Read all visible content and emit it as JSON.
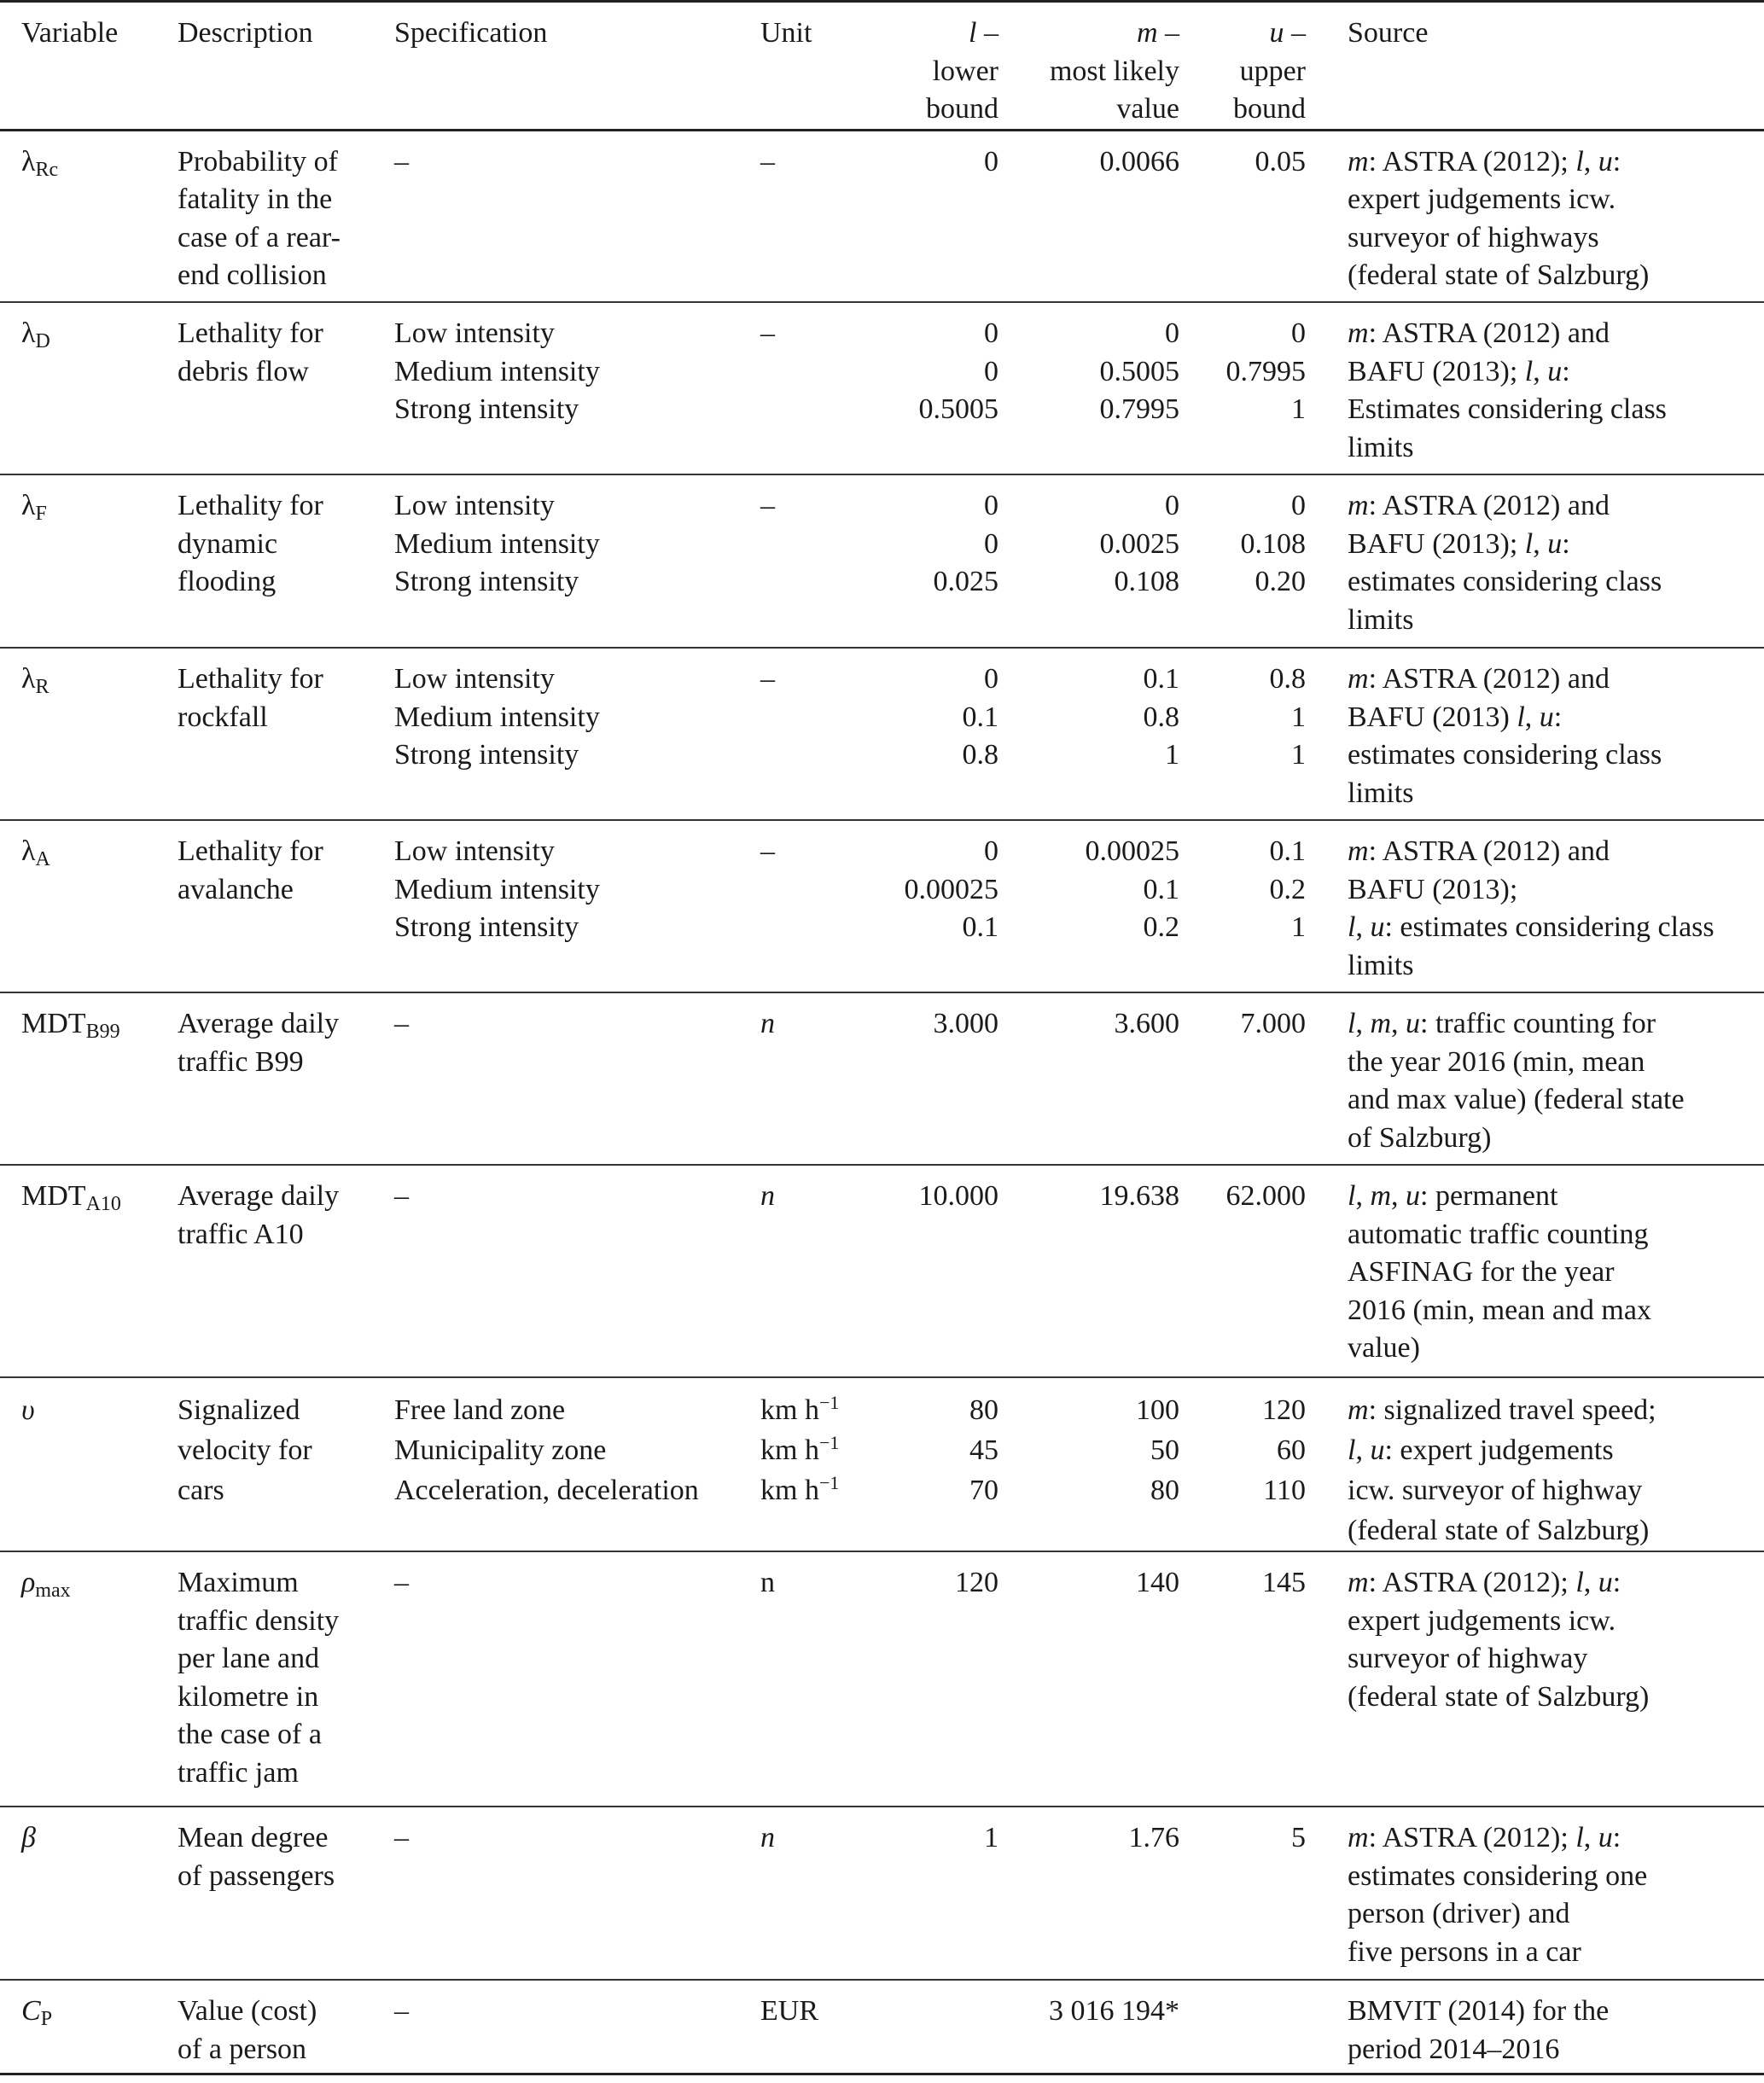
{
  "header": [
    [
      [
        "Variable"
      ]
    ],
    [
      [
        "Description"
      ]
    ],
    [
      [
        "Specification"
      ]
    ],
    [
      [
        "Unit"
      ]
    ],
    [
      [
        {
          "i": "l"
        },
        " –"
      ],
      [
        "lower"
      ],
      [
        "bound"
      ]
    ],
    [
      [
        {
          "i": "m"
        },
        " –"
      ],
      [
        "most likely"
      ],
      [
        "value"
      ]
    ],
    [
      [
        {
          "i": "u"
        },
        " –"
      ],
      [
        "upper"
      ],
      [
        "bound"
      ]
    ],
    [
      [
        "Source"
      ]
    ]
  ],
  "rows": [
    {
      "cells": [
        [
          [
            "λ",
            {
              "sub": "Rc"
            }
          ]
        ],
        [
          [
            "Probability of"
          ],
          [
            "fatality in the"
          ],
          [
            "case of a rear-"
          ],
          [
            "end collision"
          ]
        ],
        [
          [
            "–"
          ]
        ],
        [
          [
            "–"
          ]
        ],
        [
          [
            "0"
          ]
        ],
        [
          [
            "0.0066"
          ]
        ],
        [
          [
            "0.05"
          ]
        ],
        [
          [
            {
              "i": "m"
            },
            ": ASTRA (2012); ",
            {
              "i": "l"
            },
            ", ",
            {
              "i": "u"
            },
            ":"
          ],
          [
            "expert judgements icw."
          ],
          [
            "surveyor of highways"
          ],
          [
            "(federal state of Salzburg)"
          ]
        ]
      ]
    },
    {
      "cells": [
        [
          [
            "λ",
            {
              "sub": "D"
            }
          ]
        ],
        [
          [
            "Lethality for"
          ],
          [
            "debris flow"
          ]
        ],
        [
          [
            "Low intensity"
          ],
          [
            "Medium intensity"
          ],
          [
            "Strong intensity"
          ]
        ],
        [
          [
            "–"
          ]
        ],
        [
          [
            "0"
          ],
          [
            "0"
          ],
          [
            "0.5005"
          ]
        ],
        [
          [
            "0"
          ],
          [
            "0.5005"
          ],
          [
            "0.7995"
          ]
        ],
        [
          [
            "0"
          ],
          [
            "0.7995"
          ],
          [
            "1"
          ]
        ],
        [
          [
            {
              "i": "m"
            },
            ": ASTRA (2012) and"
          ],
          [
            "BAFU (2013); ",
            {
              "i": "l"
            },
            ", ",
            {
              "i": "u"
            },
            ":"
          ],
          [
            "Estimates considering class"
          ],
          [
            "limits"
          ]
        ]
      ]
    },
    {
      "cells": [
        [
          [
            "λ",
            {
              "sub": "F"
            }
          ]
        ],
        [
          [
            "Lethality for"
          ],
          [
            "dynamic"
          ],
          [
            "flooding"
          ]
        ],
        [
          [
            "Low intensity"
          ],
          [
            "Medium intensity"
          ],
          [
            "Strong intensity"
          ]
        ],
        [
          [
            "–"
          ]
        ],
        [
          [
            "0"
          ],
          [
            "0"
          ],
          [
            "0.025"
          ]
        ],
        [
          [
            "0"
          ],
          [
            "0.0025"
          ],
          [
            "0.108"
          ]
        ],
        [
          [
            "0"
          ],
          [
            "0.108"
          ],
          [
            "0.20"
          ]
        ],
        [
          [
            {
              "i": "m"
            },
            ": ASTRA (2012) and"
          ],
          [
            "BAFU (2013); ",
            {
              "i": "l"
            },
            ", ",
            {
              "i": "u"
            },
            ":"
          ],
          [
            "estimates considering class"
          ],
          [
            "limits"
          ]
        ]
      ]
    },
    {
      "cells": [
        [
          [
            "λ",
            {
              "sub": "R"
            }
          ]
        ],
        [
          [
            "Lethality for"
          ],
          [
            "rockfall"
          ]
        ],
        [
          [
            "Low intensity"
          ],
          [
            "Medium intensity"
          ],
          [
            "Strong intensity"
          ]
        ],
        [
          [
            "–"
          ]
        ],
        [
          [
            "0"
          ],
          [
            "0.1"
          ],
          [
            "0.8"
          ]
        ],
        [
          [
            "0.1"
          ],
          [
            "0.8"
          ],
          [
            "1"
          ]
        ],
        [
          [
            "0.8"
          ],
          [
            "1"
          ],
          [
            "1"
          ]
        ],
        [
          [
            {
              "i": "m"
            },
            ": ASTRA (2012) and"
          ],
          [
            "BAFU (2013) ",
            {
              "i": "l"
            },
            ", ",
            {
              "i": "u"
            },
            ":"
          ],
          [
            "estimates considering class"
          ],
          [
            "limits"
          ]
        ]
      ]
    },
    {
      "cells": [
        [
          [
            "λ",
            {
              "sub": "A"
            }
          ]
        ],
        [
          [
            "Lethality for"
          ],
          [
            "avalanche"
          ]
        ],
        [
          [
            "Low intensity"
          ],
          [
            "Medium intensity"
          ],
          [
            "Strong intensity"
          ]
        ],
        [
          [
            "–"
          ]
        ],
        [
          [
            "0"
          ],
          [
            "0.00025"
          ],
          [
            "0.1"
          ]
        ],
        [
          [
            "0.00025"
          ],
          [
            "0.1"
          ],
          [
            "0.2"
          ]
        ],
        [
          [
            "0.1"
          ],
          [
            "0.2"
          ],
          [
            "1"
          ]
        ],
        [
          [
            {
              "i": "m"
            },
            ": ASTRA (2012) and"
          ],
          [
            "BAFU (2013);"
          ],
          [
            {
              "i": "l"
            },
            ", ",
            {
              "i": "u"
            },
            ": estimates considering class"
          ],
          [
            "limits"
          ]
        ]
      ]
    },
    {
      "cells": [
        [
          [
            "MDT",
            {
              "sub": "B99"
            }
          ]
        ],
        [
          [
            "Average daily"
          ],
          [
            "traffic B99"
          ]
        ],
        [
          [
            "–"
          ]
        ],
        [
          [
            {
              "i": "n"
            }
          ]
        ],
        [
          [
            "3.000"
          ]
        ],
        [
          [
            "3.600"
          ]
        ],
        [
          [
            "7.000"
          ]
        ],
        [
          [
            {
              "i": "l"
            },
            ", ",
            {
              "i": "m"
            },
            ", ",
            {
              "i": "u"
            },
            ": traffic counting for"
          ],
          [
            "the year 2016 (min, mean"
          ],
          [
            "and max value) (federal state"
          ],
          [
            "of Salzburg)"
          ]
        ]
      ]
    },
    {
      "cells": [
        [
          [
            "MDT",
            {
              "sub": "A10"
            }
          ]
        ],
        [
          [
            "Average daily"
          ],
          [
            "traffic A10"
          ]
        ],
        [
          [
            "–"
          ]
        ],
        [
          [
            {
              "i": "n"
            }
          ]
        ],
        [
          [
            "10.000"
          ]
        ],
        [
          [
            "19.638"
          ]
        ],
        [
          [
            "62.000"
          ]
        ],
        [
          [
            {
              "i": "l"
            },
            ", ",
            {
              "i": "m"
            },
            ", ",
            {
              "i": "u"
            },
            ": permanent"
          ],
          [
            "automatic traffic counting"
          ],
          [
            "ASFINAG for the year"
          ],
          [
            "2016 (min, mean and max"
          ],
          [
            "value)"
          ]
        ]
      ]
    },
    {
      "vrow": true,
      "cells": [
        [
          [
            {
              "i": "υ"
            }
          ]
        ],
        [
          [
            "Signalized"
          ],
          [
            "velocity for"
          ],
          [
            "cars"
          ]
        ],
        [
          [
            "Free land zone"
          ],
          [
            "Municipality zone"
          ],
          [
            "Acceleration, deceleration"
          ]
        ],
        [
          [
            "km h",
            {
              "sup": "−1"
            }
          ],
          [
            "km h",
            {
              "sup": "−1"
            }
          ],
          [
            "km h",
            {
              "sup": "−1"
            }
          ]
        ],
        [
          [
            "80"
          ],
          [
            "45"
          ],
          [
            "70"
          ]
        ],
        [
          [
            "100"
          ],
          [
            "50"
          ],
          [
            "80"
          ]
        ],
        [
          [
            "120"
          ],
          [
            "60"
          ],
          [
            "110"
          ]
        ],
        [
          [
            {
              "i": "m"
            },
            ": signalized travel speed;"
          ],
          [
            {
              "i": "l"
            },
            ", ",
            {
              "i": "u"
            },
            ": expert judgements"
          ],
          [
            "icw. surveyor of highway"
          ],
          [
            "(federal state of Salzburg)"
          ]
        ]
      ]
    },
    {
      "cells": [
        [
          [
            {
              "i": "ρ"
            },
            {
              "sub": "max"
            }
          ]
        ],
        [
          [
            "Maximum"
          ],
          [
            "traffic density"
          ],
          [
            "per lane and"
          ],
          [
            "kilometre in"
          ],
          [
            "the case of a"
          ],
          [
            "traffic jam"
          ]
        ],
        [
          [
            "–"
          ]
        ],
        [
          [
            "n"
          ]
        ],
        [
          [
            "120"
          ]
        ],
        [
          [
            "140"
          ]
        ],
        [
          [
            "145"
          ]
        ],
        [
          [
            {
              "i": "m"
            },
            ": ASTRA (2012); ",
            {
              "i": "l"
            },
            ", ",
            {
              "i": "u"
            },
            ":"
          ],
          [
            "expert judgements icw."
          ],
          [
            "surveyor of highway"
          ],
          [
            "(federal state of Salzburg)"
          ]
        ]
      ]
    },
    {
      "cells": [
        [
          [
            {
              "i": "β"
            }
          ]
        ],
        [
          [
            "Mean degree"
          ],
          [
            "of passengers"
          ]
        ],
        [
          [
            "–"
          ]
        ],
        [
          [
            {
              "i": "n"
            }
          ]
        ],
        [
          [
            "1"
          ]
        ],
        [
          [
            "1.76"
          ]
        ],
        [
          [
            "5"
          ]
        ],
        [
          [
            {
              "i": "m"
            },
            ": ASTRA (2012); ",
            {
              "i": "l"
            },
            ", ",
            {
              "i": "u"
            },
            ":"
          ],
          [
            "estimates considering one"
          ],
          [
            "person (driver) and"
          ],
          [
            "five persons in a car"
          ]
        ]
      ]
    },
    {
      "cells": [
        [
          [
            {
              "i": "C"
            },
            {
              "sub": "P"
            }
          ]
        ],
        [
          [
            "Value (cost)"
          ],
          [
            "of a person"
          ]
        ],
        [
          [
            "–"
          ]
        ],
        [
          [
            "EUR"
          ]
        ],
        [
          [
            ""
          ]
        ],
        [
          [
            "3 016 194*"
          ]
        ],
        [
          [
            ""
          ]
        ],
        [
          [
            "BMVIT (2014) for the"
          ],
          [
            "period 2014–2016"
          ]
        ]
      ]
    }
  ]
}
